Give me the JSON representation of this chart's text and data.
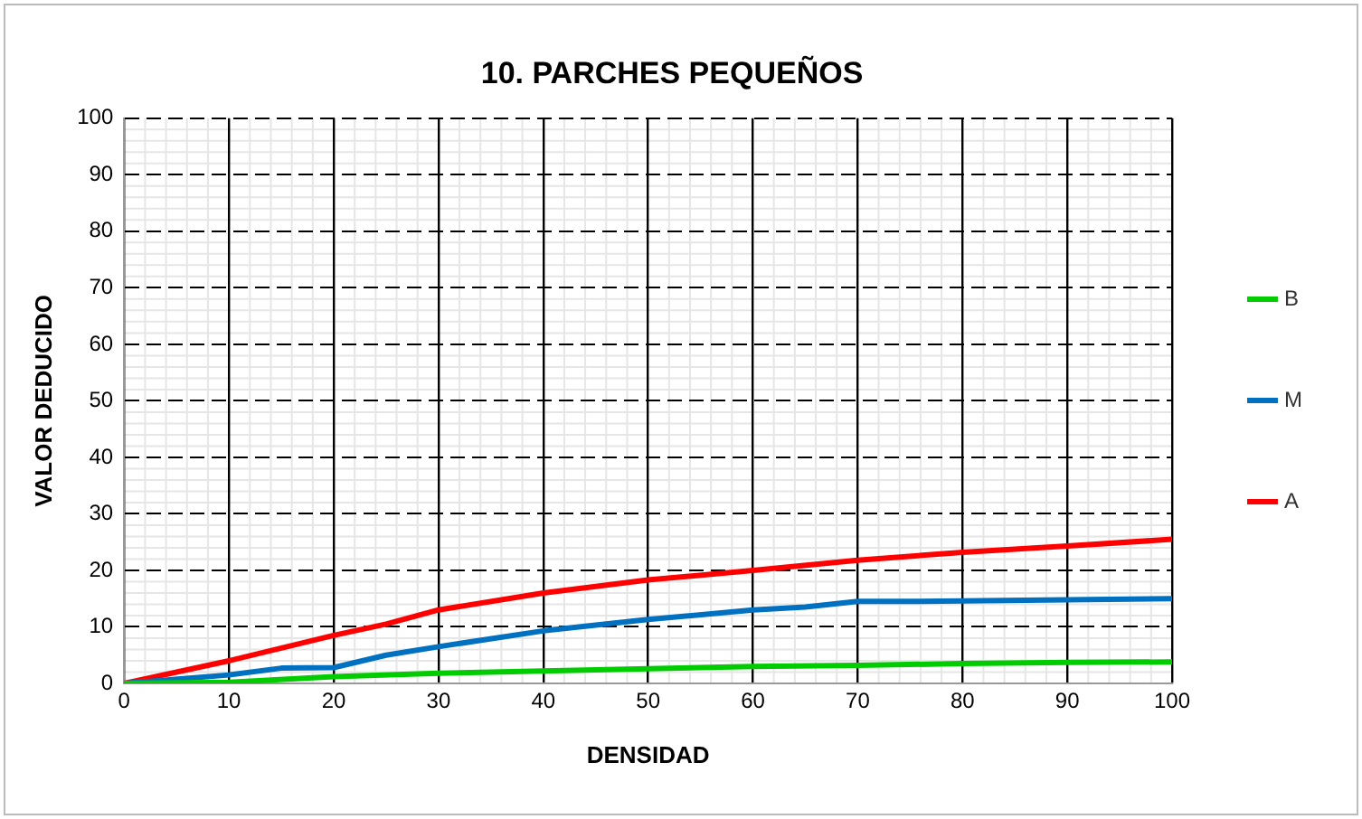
{
  "chart_data": {
    "type": "line",
    "title": "10. PARCHES PEQUEÑOS",
    "xlabel": "DENSIDAD",
    "ylabel": "VALOR DEDUCIDO",
    "xlim": [
      0,
      100
    ],
    "xticks": [
      0,
      10,
      20,
      30,
      40,
      50,
      60,
      70,
      80,
      90,
      100
    ],
    "ylim": [
      0,
      100
    ],
    "yticks": [
      0,
      10,
      20,
      30,
      40,
      50,
      60,
      70,
      80,
      90,
      100
    ],
    "grid": true,
    "legend": "right",
    "marker": "none",
    "line_style": "solid",
    "series": [
      {
        "name": "B",
        "color": "#00cc00",
        "x": [
          0,
          10,
          20,
          30,
          40,
          50,
          60,
          70,
          80,
          90,
          100
        ],
        "values": [
          0,
          0.2,
          1.2,
          1.8,
          2.2,
          2.6,
          3,
          3.2,
          3.5,
          3.7,
          3.8
        ]
      },
      {
        "name": "M",
        "color": "#0070c0",
        "x": [
          0,
          10,
          15,
          20,
          25,
          30,
          40,
          50,
          60,
          65,
          70,
          75,
          80,
          90,
          100
        ],
        "values": [
          0,
          1.5,
          2.7,
          2.8,
          5,
          6.5,
          9.3,
          11.3,
          13,
          13.5,
          14.5,
          14.5,
          14.6,
          14.8,
          15
        ]
      },
      {
        "name": "A",
        "color": "#ff0000",
        "x": [
          0,
          10,
          20,
          25,
          30,
          40,
          50,
          60,
          70,
          80,
          90,
          100
        ],
        "values": [
          0,
          4,
          8.5,
          10.5,
          13,
          16,
          18.3,
          20,
          21.8,
          23.2,
          24.3,
          25.5
        ]
      }
    ]
  }
}
